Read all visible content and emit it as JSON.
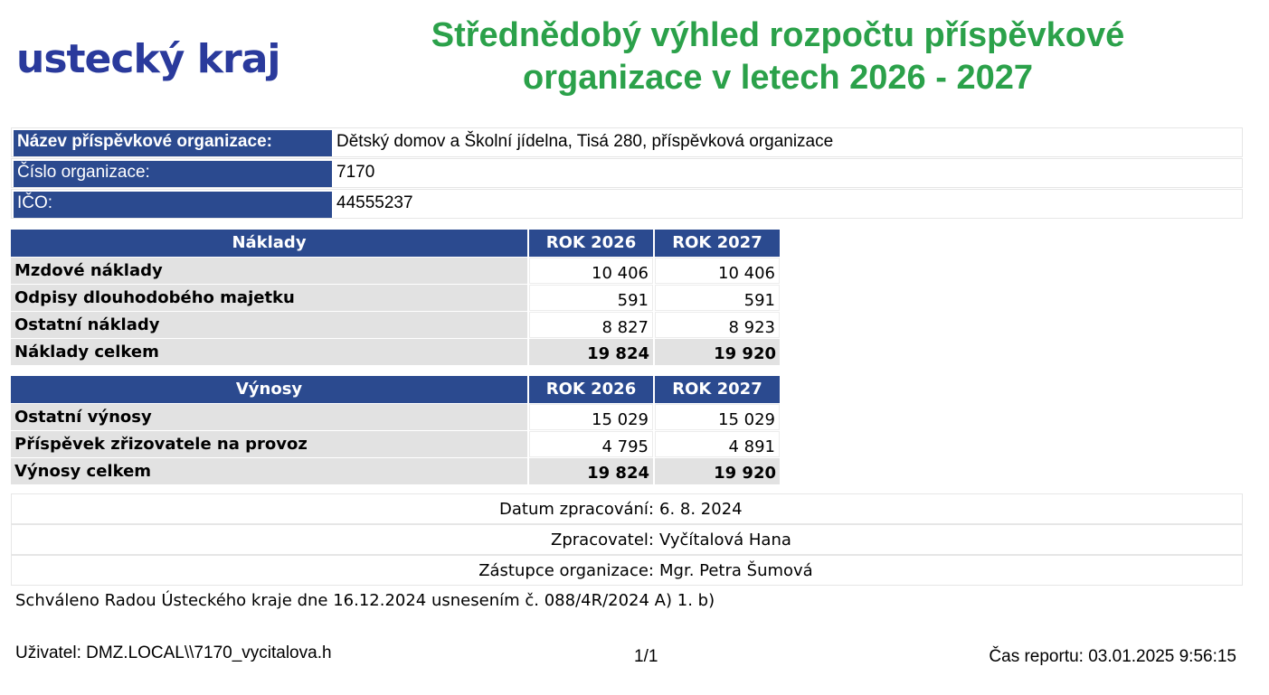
{
  "logo": "ustecký kraj",
  "title": "Střednědobý výhled rozpočtu příspěvkové organizace v letech 2026 - 2027",
  "org": [
    {
      "label": "Název příspěvkové organizace:",
      "value": "Dětský domov a Školní jídelna, Tisá 280, příspěvková organizace"
    },
    {
      "label": "Číslo organizace:",
      "value": "7170"
    },
    {
      "label": "IČO:",
      "value": "44555237"
    }
  ],
  "naklady": {
    "header": "Náklady",
    "col1": "ROK 2026",
    "col2": "ROK 2027",
    "rows": [
      {
        "label": "Mzdové náklady",
        "v2026": "10 406",
        "v2027": "10 406"
      },
      {
        "label": "Odpisy dlouhodobého majetku",
        "v2026": "591",
        "v2027": "591"
      },
      {
        "label": "Ostatní náklady",
        "v2026": "8 827",
        "v2027": "8 923"
      },
      {
        "label": "Náklady celkem",
        "v2026": "19 824",
        "v2027": "19 920"
      }
    ]
  },
  "vynosy": {
    "header": "Výnosy",
    "col1": "ROK 2026",
    "col2": "ROK 2027",
    "rows": [
      {
        "label": "Ostatní výnosy",
        "v2026": "15 029",
        "v2027": "15 029"
      },
      {
        "label": "Příspěvek zřizovatele na provoz",
        "v2026": "4 795",
        "v2027": "4 891"
      },
      {
        "label": "Výnosy celkem",
        "v2026": "19 824",
        "v2027": "19 920"
      }
    ]
  },
  "meta": [
    {
      "label": "Datum zpracování:",
      "value": "6. 8. 2024"
    },
    {
      "label": "Zpracovatel:",
      "value": "Vyčítalová Hana"
    },
    {
      "label": "Zástupce organizace:",
      "value": "Mgr. Petra Šumová"
    }
  ],
  "approval": "Schváleno Radou Ústeckého kraje dne 16.12.2024 usnesením č. 088/4R/2024 A) 1. b)",
  "footer": {
    "user": "Uživatel: DMZ.LOCAL\\\\7170_vycitalova.h",
    "page": "1/1",
    "report_time": "Čas reportu: 03.01.2025 9:56:15"
  },
  "colors": {
    "accent_green": "#2ba14a",
    "header_blue": "#2b4a8f",
    "logo_blue": "#2a3a9c",
    "label_gray": "#e2e2e2"
  }
}
